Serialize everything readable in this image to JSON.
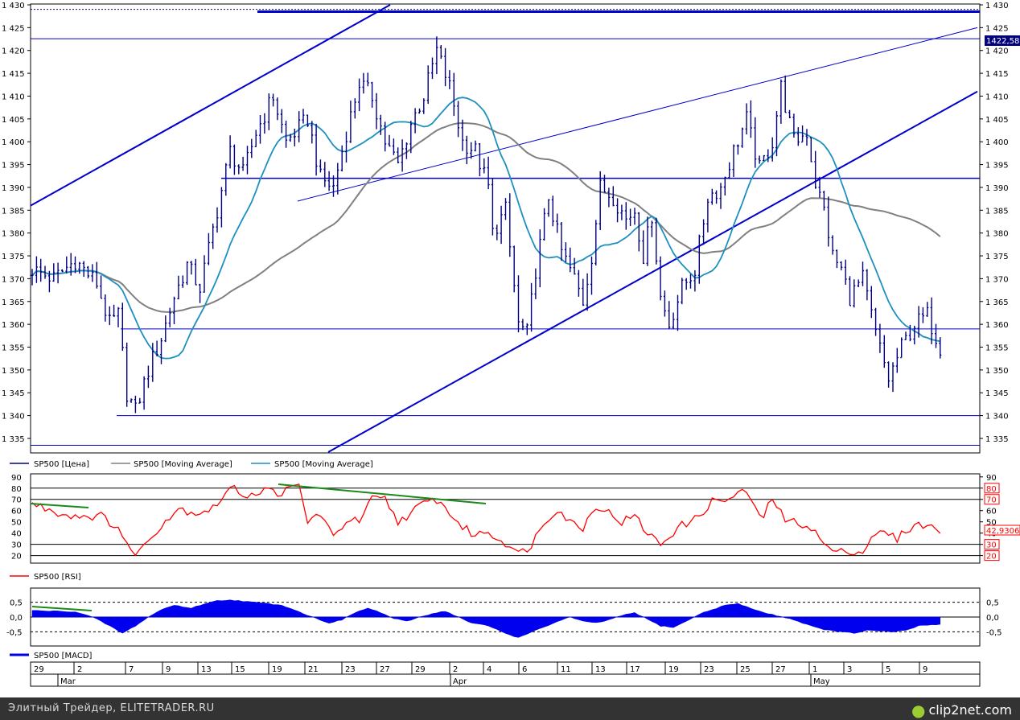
{
  "chart_data": [
    {
      "type": "candlestick",
      "symbol": "SP500",
      "ylim": [
        1332,
        1430
      ],
      "yticks": [
        "1 430",
        "1 425",
        "1 420",
        "1 415",
        "1 410",
        "1 405",
        "1 400",
        "1 395",
        "1 390",
        "1 385",
        "1 380",
        "1 375",
        "1 370",
        "1 365",
        "1 360",
        "1 355",
        "1 350",
        "1 345",
        "1 340",
        "1 335"
      ],
      "last_price_label": "1422,58",
      "close_keypoints": [
        [
          0,
          1372
        ],
        [
          5,
          1370
        ],
        [
          10,
          1374
        ],
        [
          15,
          1369
        ],
        [
          18,
          1360
        ],
        [
          20,
          1362
        ],
        [
          22,
          1345
        ],
        [
          24,
          1341
        ],
        [
          27,
          1350
        ],
        [
          30,
          1357
        ],
        [
          33,
          1366
        ],
        [
          36,
          1373
        ],
        [
          39,
          1368
        ],
        [
          43,
          1385
        ],
        [
          46,
          1398
        ],
        [
          49,
          1393
        ],
        [
          52,
          1402
        ],
        [
          56,
          1410
        ],
        [
          59,
          1400
        ],
        [
          62,
          1403
        ],
        [
          64,
          1405
        ],
        [
          67,
          1392
        ],
        [
          70,
          1390
        ],
        [
          73,
          1402
        ],
        [
          76,
          1413
        ],
        [
          79,
          1410
        ],
        [
          82,
          1400
        ],
        [
          85,
          1395
        ],
        [
          88,
          1404
        ],
        [
          91,
          1410
        ],
        [
          94,
          1420
        ],
        [
          97,
          1412
        ],
        [
          100,
          1400
        ],
        [
          103,
          1398
        ],
        [
          106,
          1390
        ],
        [
          107,
          1380
        ],
        [
          110,
          1385
        ],
        [
          113,
          1360
        ],
        [
          115,
          1358
        ],
        [
          117,
          1372
        ],
        [
          120,
          1388
        ],
        [
          123,
          1376
        ],
        [
          126,
          1370
        ],
        [
          128,
          1365
        ],
        [
          130,
          1375
        ],
        [
          132,
          1390
        ],
        [
          135,
          1388
        ],
        [
          138,
          1383
        ],
        [
          140,
          1385
        ],
        [
          142,
          1375
        ],
        [
          144,
          1384
        ],
        [
          146,
          1366
        ],
        [
          148,
          1360
        ],
        [
          151,
          1368
        ],
        [
          154,
          1372
        ],
        [
          157,
          1388
        ],
        [
          160,
          1390
        ],
        [
          163,
          1398
        ],
        [
          166,
          1405
        ],
        [
          169,
          1394
        ],
        [
          172,
          1400
        ],
        [
          174,
          1412
        ],
        [
          177,
          1400
        ],
        [
          180,
          1402
        ],
        [
          182,
          1391
        ],
        [
          184,
          1385
        ],
        [
          186,
          1375
        ],
        [
          188,
          1372
        ],
        [
          190,
          1366
        ],
        [
          193,
          1370
        ],
        [
          196,
          1358
        ],
        [
          199,
          1348
        ],
        [
          202,
          1355
        ],
        [
          205,
          1360
        ],
        [
          208,
          1362
        ],
        [
          211,
          1355
        ]
      ],
      "lines": {
        "resistance_top": 1429,
        "resistance_bold": 1428.5,
        "level_1422": 1422.58,
        "level_1392": 1392,
        "level_1359": 1359,
        "level_1340": 1340,
        "level_1333": 1333.5
      },
      "legend": [
        {
          "name": "SP500 [Цена]",
          "color": "#000080"
        },
        {
          "name": "SP500 [Moving Average]",
          "color": "#808080"
        },
        {
          "name": "SP500 [Moving Average]",
          "color": "#1e90c0"
        }
      ]
    },
    {
      "type": "line",
      "name": "SP500 [RSI]",
      "ylim": [
        14,
        92
      ],
      "yticks": [
        "90",
        "80",
        "70",
        "60",
        "50",
        "40",
        "30",
        "20"
      ],
      "levels": [
        20,
        30,
        70,
        80
      ],
      "right_labels": [
        "80",
        "70",
        "30",
        "20"
      ],
      "last_value_label": "42,93063",
      "keypoints": [
        [
          0,
          66
        ],
        [
          8,
          56
        ],
        [
          16,
          55
        ],
        [
          20,
          45
        ],
        [
          23,
          22
        ],
        [
          26,
          28
        ],
        [
          30,
          48
        ],
        [
          34,
          62
        ],
        [
          38,
          58
        ],
        [
          42,
          62
        ],
        [
          46,
          80
        ],
        [
          50,
          74
        ],
        [
          54,
          78
        ],
        [
          58,
          76
        ],
        [
          62,
          82
        ],
        [
          64,
          50
        ],
        [
          67,
          58
        ],
        [
          70,
          35
        ],
        [
          73,
          52
        ],
        [
          76,
          50
        ],
        [
          79,
          70
        ],
        [
          82,
          70
        ],
        [
          85,
          50
        ],
        [
          88,
          58
        ],
        [
          91,
          66
        ],
        [
          94,
          70
        ],
        [
          97,
          58
        ],
        [
          100,
          45
        ],
        [
          103,
          38
        ],
        [
          106,
          42
        ],
        [
          108,
          35
        ],
        [
          111,
          30
        ],
        [
          113,
          21
        ],
        [
          116,
          30
        ],
        [
          119,
          50
        ],
        [
          122,
          62
        ],
        [
          125,
          50
        ],
        [
          128,
          45
        ],
        [
          131,
          65
        ],
        [
          134,
          58
        ],
        [
          137,
          50
        ],
        [
          140,
          55
        ],
        [
          143,
          40
        ],
        [
          146,
          30
        ],
        [
          150,
          45
        ],
        [
          154,
          52
        ],
        [
          158,
          68
        ],
        [
          162,
          70
        ],
        [
          166,
          78
        ],
        [
          168,
          60
        ],
        [
          170,
          55
        ],
        [
          172,
          72
        ],
        [
          175,
          50
        ],
        [
          178,
          50
        ],
        [
          181,
          45
        ],
        [
          184,
          30
        ],
        [
          187,
          22
        ],
        [
          190,
          25
        ],
        [
          193,
          22
        ],
        [
          195,
          38
        ],
        [
          198,
          40
        ],
        [
          201,
          35
        ],
        [
          204,
          45
        ],
        [
          207,
          48
        ],
        [
          210,
          43
        ]
      ]
    },
    {
      "type": "area",
      "name": "SP500 [MACD]",
      "ylim": [
        -0.95,
        0.95
      ],
      "yticks": [
        "0,5",
        "0,0",
        "-0,5"
      ],
      "keypoints": [
        [
          0,
          0.22
        ],
        [
          10,
          0.18
        ],
        [
          14,
          0.0
        ],
        [
          18,
          -0.3
        ],
        [
          21,
          -0.55
        ],
        [
          24,
          -0.3
        ],
        [
          27,
          0.0
        ],
        [
          30,
          0.25
        ],
        [
          33,
          0.4
        ],
        [
          37,
          0.3
        ],
        [
          40,
          0.45
        ],
        [
          43,
          0.55
        ],
        [
          46,
          0.58
        ],
        [
          50,
          0.52
        ],
        [
          55,
          0.45
        ],
        [
          58,
          0.4
        ],
        [
          60,
          0.3
        ],
        [
          63,
          0.12
        ],
        [
          66,
          -0.05
        ],
        [
          69,
          -0.2
        ],
        [
          72,
          -0.1
        ],
        [
          75,
          0.15
        ],
        [
          78,
          0.3
        ],
        [
          81,
          0.15
        ],
        [
          84,
          -0.05
        ],
        [
          87,
          -0.15
        ],
        [
          90,
          0.0
        ],
        [
          93,
          0.12
        ],
        [
          96,
          0.2
        ],
        [
          99,
          0.0
        ],
        [
          102,
          -0.2
        ],
        [
          106,
          -0.3
        ],
        [
          110,
          -0.55
        ],
        [
          113,
          -0.7
        ],
        [
          116,
          -0.5
        ],
        [
          119,
          -0.35
        ],
        [
          122,
          -0.15
        ],
        [
          125,
          0.0
        ],
        [
          128,
          -0.15
        ],
        [
          131,
          -0.2
        ],
        [
          134,
          -0.1
        ],
        [
          137,
          0.05
        ],
        [
          140,
          0.15
        ],
        [
          143,
          -0.08
        ],
        [
          146,
          -0.3
        ],
        [
          149,
          -0.35
        ],
        [
          152,
          -0.15
        ],
        [
          155,
          0.1
        ],
        [
          158,
          0.25
        ],
        [
          161,
          0.4
        ],
        [
          164,
          0.45
        ],
        [
          167,
          0.3
        ],
        [
          170,
          0.15
        ],
        [
          173,
          0.05
        ],
        [
          176,
          -0.05
        ],
        [
          179,
          -0.2
        ],
        [
          182,
          -0.35
        ],
        [
          185,
          -0.45
        ],
        [
          188,
          -0.5
        ],
        [
          191,
          -0.55
        ],
        [
          194,
          -0.45
        ],
        [
          197,
          -0.48
        ],
        [
          200,
          -0.5
        ],
        [
          203,
          -0.45
        ],
        [
          206,
          -0.3
        ],
        [
          210,
          -0.25
        ]
      ]
    }
  ],
  "xaxis": {
    "day_labels": [
      "29",
      "2",
      "7",
      "9",
      "13",
      "15",
      "19",
      "21",
      "23",
      "27",
      "29",
      "2",
      "4",
      "6",
      "11",
      "13",
      "17",
      "19",
      "23",
      "25",
      "27",
      "1",
      "3",
      "5",
      "9"
    ],
    "month_labels": [
      "Mar",
      "Apr",
      "May"
    ]
  },
  "panels": {
    "rsi_legend": "SP500 [RSI]",
    "macd_legend": "SP500 [MACD]"
  },
  "footer": {
    "text": "Элитный Трейдер, ELITETRADER.RU",
    "logo": "clip2net.com"
  },
  "colors": {
    "price": "#000080",
    "ma_long": "#808080",
    "ma_short": "#1e90c0",
    "trend": "#0000cc",
    "rsi": "#ff0000",
    "divergence": "#1a8a1a",
    "macd": "#0000ee"
  }
}
